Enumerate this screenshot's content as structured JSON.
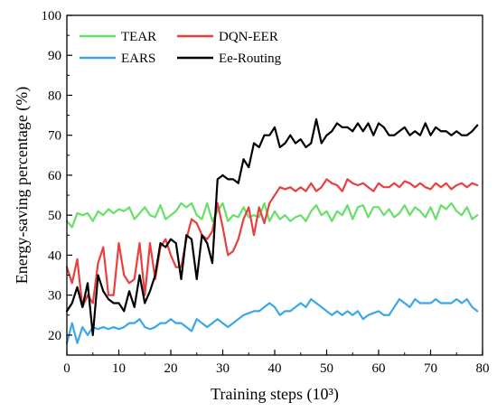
{
  "chart_data": {
    "type": "line",
    "title": "",
    "xlabel": "Training steps (10³)",
    "ylabel": "Energy-saving percentage (%)",
    "xlim": [
      0,
      80
    ],
    "ylim": [
      15,
      100
    ],
    "xticks": [
      0,
      10,
      20,
      30,
      40,
      50,
      60,
      70,
      80
    ],
    "yticks": [
      20,
      30,
      40,
      50,
      60,
      70,
      80,
      90,
      100
    ],
    "grid": false,
    "legend_position": "top-left",
    "x": [
      0,
      1,
      2,
      3,
      4,
      5,
      6,
      7,
      8,
      9,
      10,
      11,
      12,
      13,
      14,
      15,
      16,
      17,
      18,
      19,
      20,
      21,
      22,
      23,
      24,
      25,
      26,
      27,
      28,
      29,
      30,
      31,
      32,
      33,
      34,
      35,
      36,
      37,
      38,
      39,
      40,
      41,
      42,
      43,
      44,
      45,
      46,
      47,
      48,
      49,
      50,
      51,
      52,
      53,
      54,
      55,
      56,
      57,
      58,
      59,
      60,
      61,
      62,
      63,
      64,
      65,
      66,
      67,
      68,
      69,
      70,
      71,
      72,
      73,
      74,
      75,
      76,
      77,
      78,
      79
    ],
    "series": [
      {
        "name": "TEAR",
        "color": "#66e066",
        "values": [
          48.5,
          47,
          50.5,
          50,
          50.5,
          48.5,
          51,
          50,
          51.5,
          50.5,
          51.5,
          51,
          52,
          49,
          50.5,
          52,
          50,
          49.5,
          52.5,
          49,
          50,
          51,
          53,
          52,
          53,
          50,
          49,
          53,
          48.5,
          51,
          53,
          48.5,
          50,
          49.5,
          52,
          49.5,
          50,
          49.5,
          53,
          48.5,
          51,
          49,
          50,
          48.5,
          49.5,
          50,
          48.5,
          51,
          52.5,
          50,
          51,
          48.5,
          51,
          50,
          52.5,
          49,
          52,
          52.5,
          49.5,
          52,
          52,
          50,
          51.5,
          49.5,
          50.5,
          52.5,
          50,
          52,
          51,
          49.5,
          52,
          49,
          52.5,
          51.5,
          53,
          51,
          50,
          52,
          49,
          50
        ]
      },
      {
        "name": "DQN-EER",
        "color": "#e84040",
        "values": [
          37,
          33,
          39,
          27,
          30,
          28,
          38,
          42,
          30,
          30,
          43,
          35,
          33,
          34,
          43,
          30,
          43,
          34,
          42,
          44,
          40,
          37,
          37,
          44,
          49,
          48,
          45,
          44,
          46,
          53,
          47,
          40,
          41,
          44,
          49,
          52,
          45,
          52,
          48,
          53,
          55,
          57,
          56.5,
          57,
          56,
          57,
          56,
          58,
          56,
          57,
          59,
          58,
          57.5,
          56,
          59,
          58,
          57.5,
          58,
          57,
          56,
          58,
          57,
          57,
          58,
          57,
          58.5,
          58,
          57,
          58,
          57,
          56.5,
          58,
          57,
          58,
          56.5,
          57.5,
          58,
          57,
          58,
          57.5
        ]
      },
      {
        "name": "EARS",
        "color": "#3aa7e8",
        "values": [
          18,
          23,
          18,
          22,
          20,
          22,
          21.5,
          22,
          21.5,
          22,
          21.5,
          22,
          23,
          23,
          24,
          22,
          21.5,
          22,
          23,
          23,
          24,
          23,
          23,
          22,
          21,
          24,
          23,
          22,
          23,
          24,
          23,
          22,
          23,
          24,
          25,
          25.5,
          26,
          26,
          27,
          28,
          27,
          25,
          26,
          26,
          27,
          28,
          27,
          29,
          28,
          27,
          26,
          25,
          26,
          25,
          26,
          25,
          26,
          24,
          25,
          25.5,
          26,
          25,
          25,
          27,
          29,
          28,
          27,
          29,
          28,
          28,
          28,
          29,
          28,
          28,
          28,
          29,
          28,
          29,
          27,
          26
        ]
      },
      {
        "name": "Ee-Routing",
        "color": "#000000",
        "values": [
          26,
          28,
          32,
          27,
          33,
          20,
          35,
          31,
          29,
          28,
          28,
          26,
          31,
          27,
          35,
          28,
          31,
          35,
          43,
          42,
          44,
          43,
          34,
          45,
          44,
          34,
          45,
          43,
          38,
          59,
          60,
          59,
          59,
          58,
          64,
          62,
          68,
          67,
          70,
          70,
          72,
          67,
          68,
          70,
          68,
          69,
          67,
          68,
          74,
          68,
          70,
          71,
          73,
          72,
          72,
          71,
          73,
          71,
          73,
          70,
          73,
          72,
          70,
          70,
          71,
          72,
          70,
          71,
          70,
          73,
          70,
          72,
          71,
          71,
          70,
          71,
          70,
          70,
          71,
          72.5
        ]
      }
    ]
  }
}
